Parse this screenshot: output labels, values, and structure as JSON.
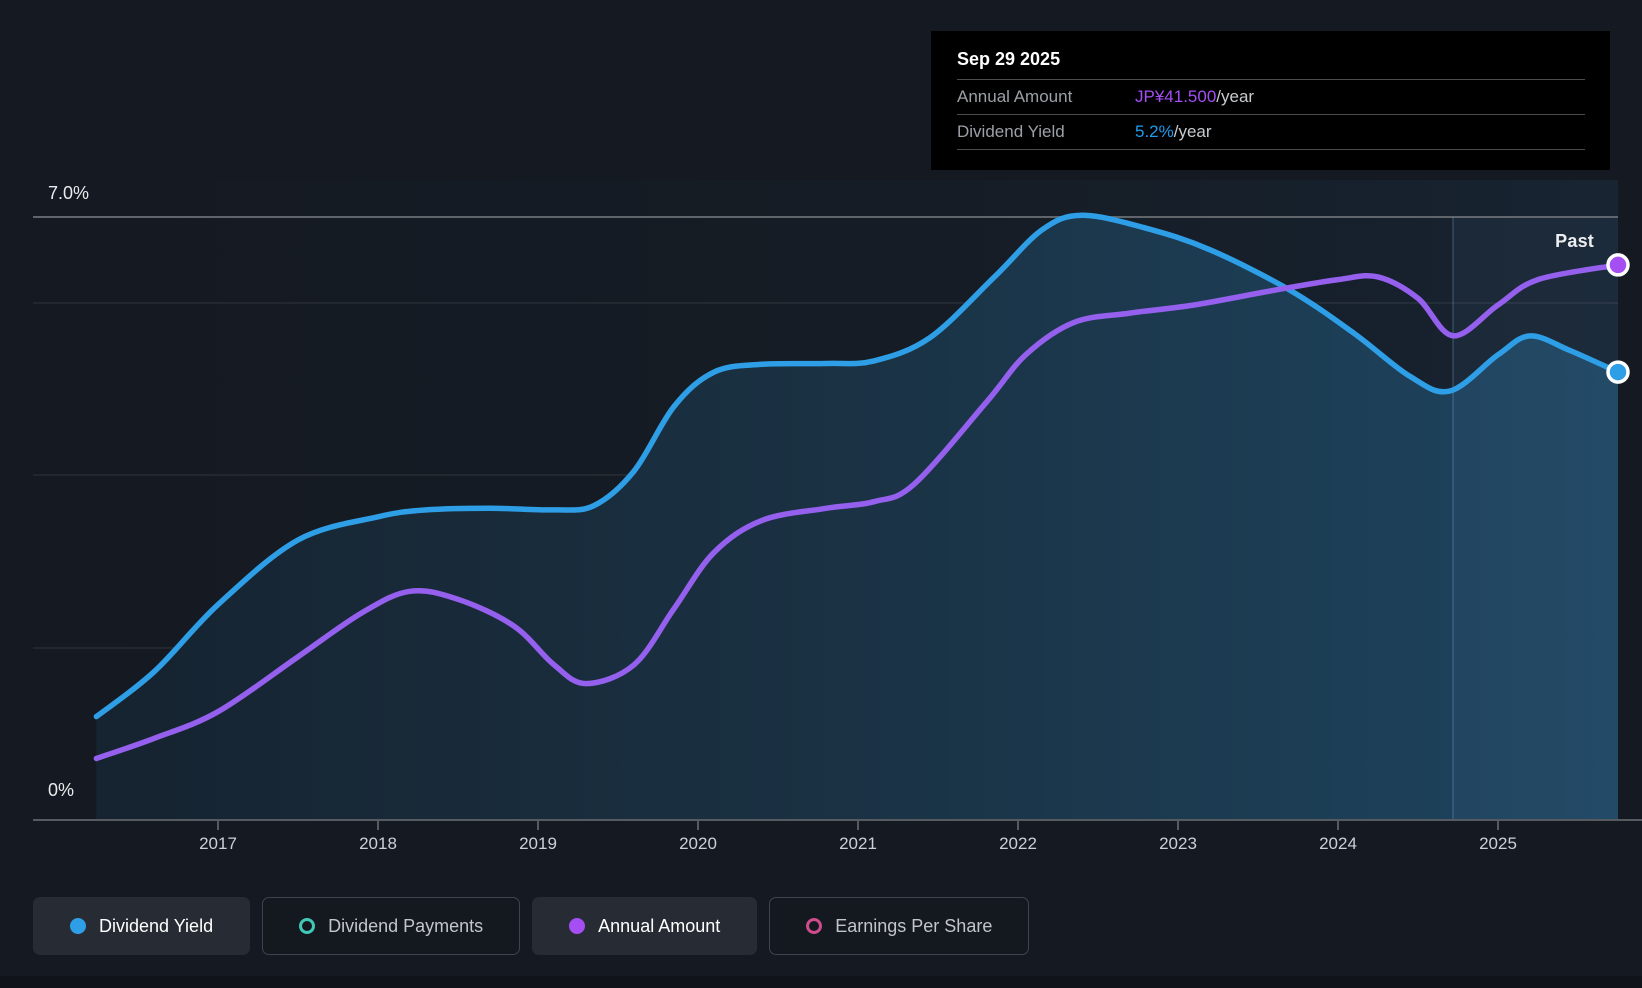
{
  "tooltip": {
    "date": "Sep 29 2025",
    "rows": [
      {
        "label": "Annual Amount",
        "value": "JP¥41.500",
        "suffix": "/year",
        "value_color": "#a44ef3"
      },
      {
        "label": "Dividend Yield",
        "value": "5.2%",
        "suffix": "/year",
        "value_color": "#1e9bf0"
      }
    ]
  },
  "y_axis": {
    "top_label": "7.0%",
    "bottom_label": "0%"
  },
  "x_axis": {
    "ticks": [
      "2017",
      "2018",
      "2019",
      "2020",
      "2021",
      "2022",
      "2023",
      "2024",
      "2025"
    ]
  },
  "annotations": {
    "past_label": "Past"
  },
  "legend": [
    {
      "label": "Dividend Yield",
      "marker": "filled-dot",
      "color": "#2e9fe6",
      "active": true
    },
    {
      "label": "Dividend Payments",
      "marker": "ring",
      "color": "#41c8b8",
      "active": false
    },
    {
      "label": "Annual Amount",
      "marker": "filled-dot",
      "color": "#a44ef3",
      "active": true
    },
    {
      "label": "Earnings Per Share",
      "marker": "ring",
      "color": "#cc4c8c",
      "active": false
    }
  ],
  "chart_data": {
    "type": "line",
    "title": "Dividend yield and annual dividend amount over time",
    "x_range": [
      2016.24,
      2025.75
    ],
    "x_tick_years": [
      2017,
      2018,
      2019,
      2020,
      2021,
      2022,
      2023,
      2024,
      2025
    ],
    "y_axis": {
      "unit": "%",
      "min": 0,
      "max": 7,
      "gridlines_pct": [
        2,
        4,
        6,
        7
      ],
      "top_tick_label": "7.0%",
      "bottom_tick_label": "0%"
    },
    "past_divider_year": 2024.72,
    "grid": true,
    "legend_position": "bottom-left",
    "series": [
      {
        "name": "Dividend Yield",
        "color": "#2e9fe6",
        "unit": "percent",
        "area_fill": true,
        "end_marker": true,
        "x": [
          2016.24,
          2016.6,
          2017,
          2017.5,
          2018,
          2018.3,
          2018.7,
          2019.1,
          2019.35,
          2019.6,
          2019.85,
          2020.1,
          2020.4,
          2020.8,
          2021.1,
          2021.45,
          2021.85,
          2022.15,
          2022.4,
          2022.8,
          2023.2,
          2023.7,
          2024.1,
          2024.45,
          2024.7,
          2025.0,
          2025.2,
          2025.45,
          2025.75
        ],
        "values": [
          1.2,
          1.72,
          2.5,
          3.25,
          3.52,
          3.6,
          3.62,
          3.6,
          3.65,
          4.05,
          4.8,
          5.2,
          5.29,
          5.3,
          5.33,
          5.6,
          6.3,
          6.85,
          7.02,
          6.87,
          6.62,
          6.15,
          5.65,
          5.15,
          4.98,
          5.4,
          5.62,
          5.45,
          5.2
        ],
        "end_value_label": "5.2%/year"
      },
      {
        "name": "Annual Amount",
        "color": "#a44ef3",
        "unit": "JPY",
        "area_fill": false,
        "end_marker": true,
        "plotted_as_yield_equivalent_scale": 6.44,
        "x": [
          2016.24,
          2016.6,
          2017,
          2017.5,
          2017.9,
          2018.2,
          2018.5,
          2018.85,
          2019.1,
          2019.3,
          2019.6,
          2019.85,
          2020.1,
          2020.4,
          2020.8,
          2021.1,
          2021.35,
          2021.8,
          2022.05,
          2022.35,
          2022.7,
          2023.1,
          2023.6,
          2024.0,
          2024.25,
          2024.5,
          2024.72,
          2025.0,
          2025.25,
          2025.75
        ],
        "values": [
          4.6,
          6.1,
          8.1,
          12.2,
          15.5,
          17.1,
          16.5,
          14.5,
          11.6,
          10.2,
          11.6,
          15.8,
          20.0,
          22.4,
          23.3,
          23.8,
          25.1,
          31.2,
          34.8,
          37.2,
          37.9,
          38.5,
          39.6,
          40.4,
          40.6,
          39.0,
          36.2,
          38.5,
          40.4,
          41.5
        ],
        "end_value_label": "JP¥41.500/year"
      }
    ],
    "disabled_series": [
      "Dividend Payments",
      "Earnings Per Share"
    ]
  }
}
